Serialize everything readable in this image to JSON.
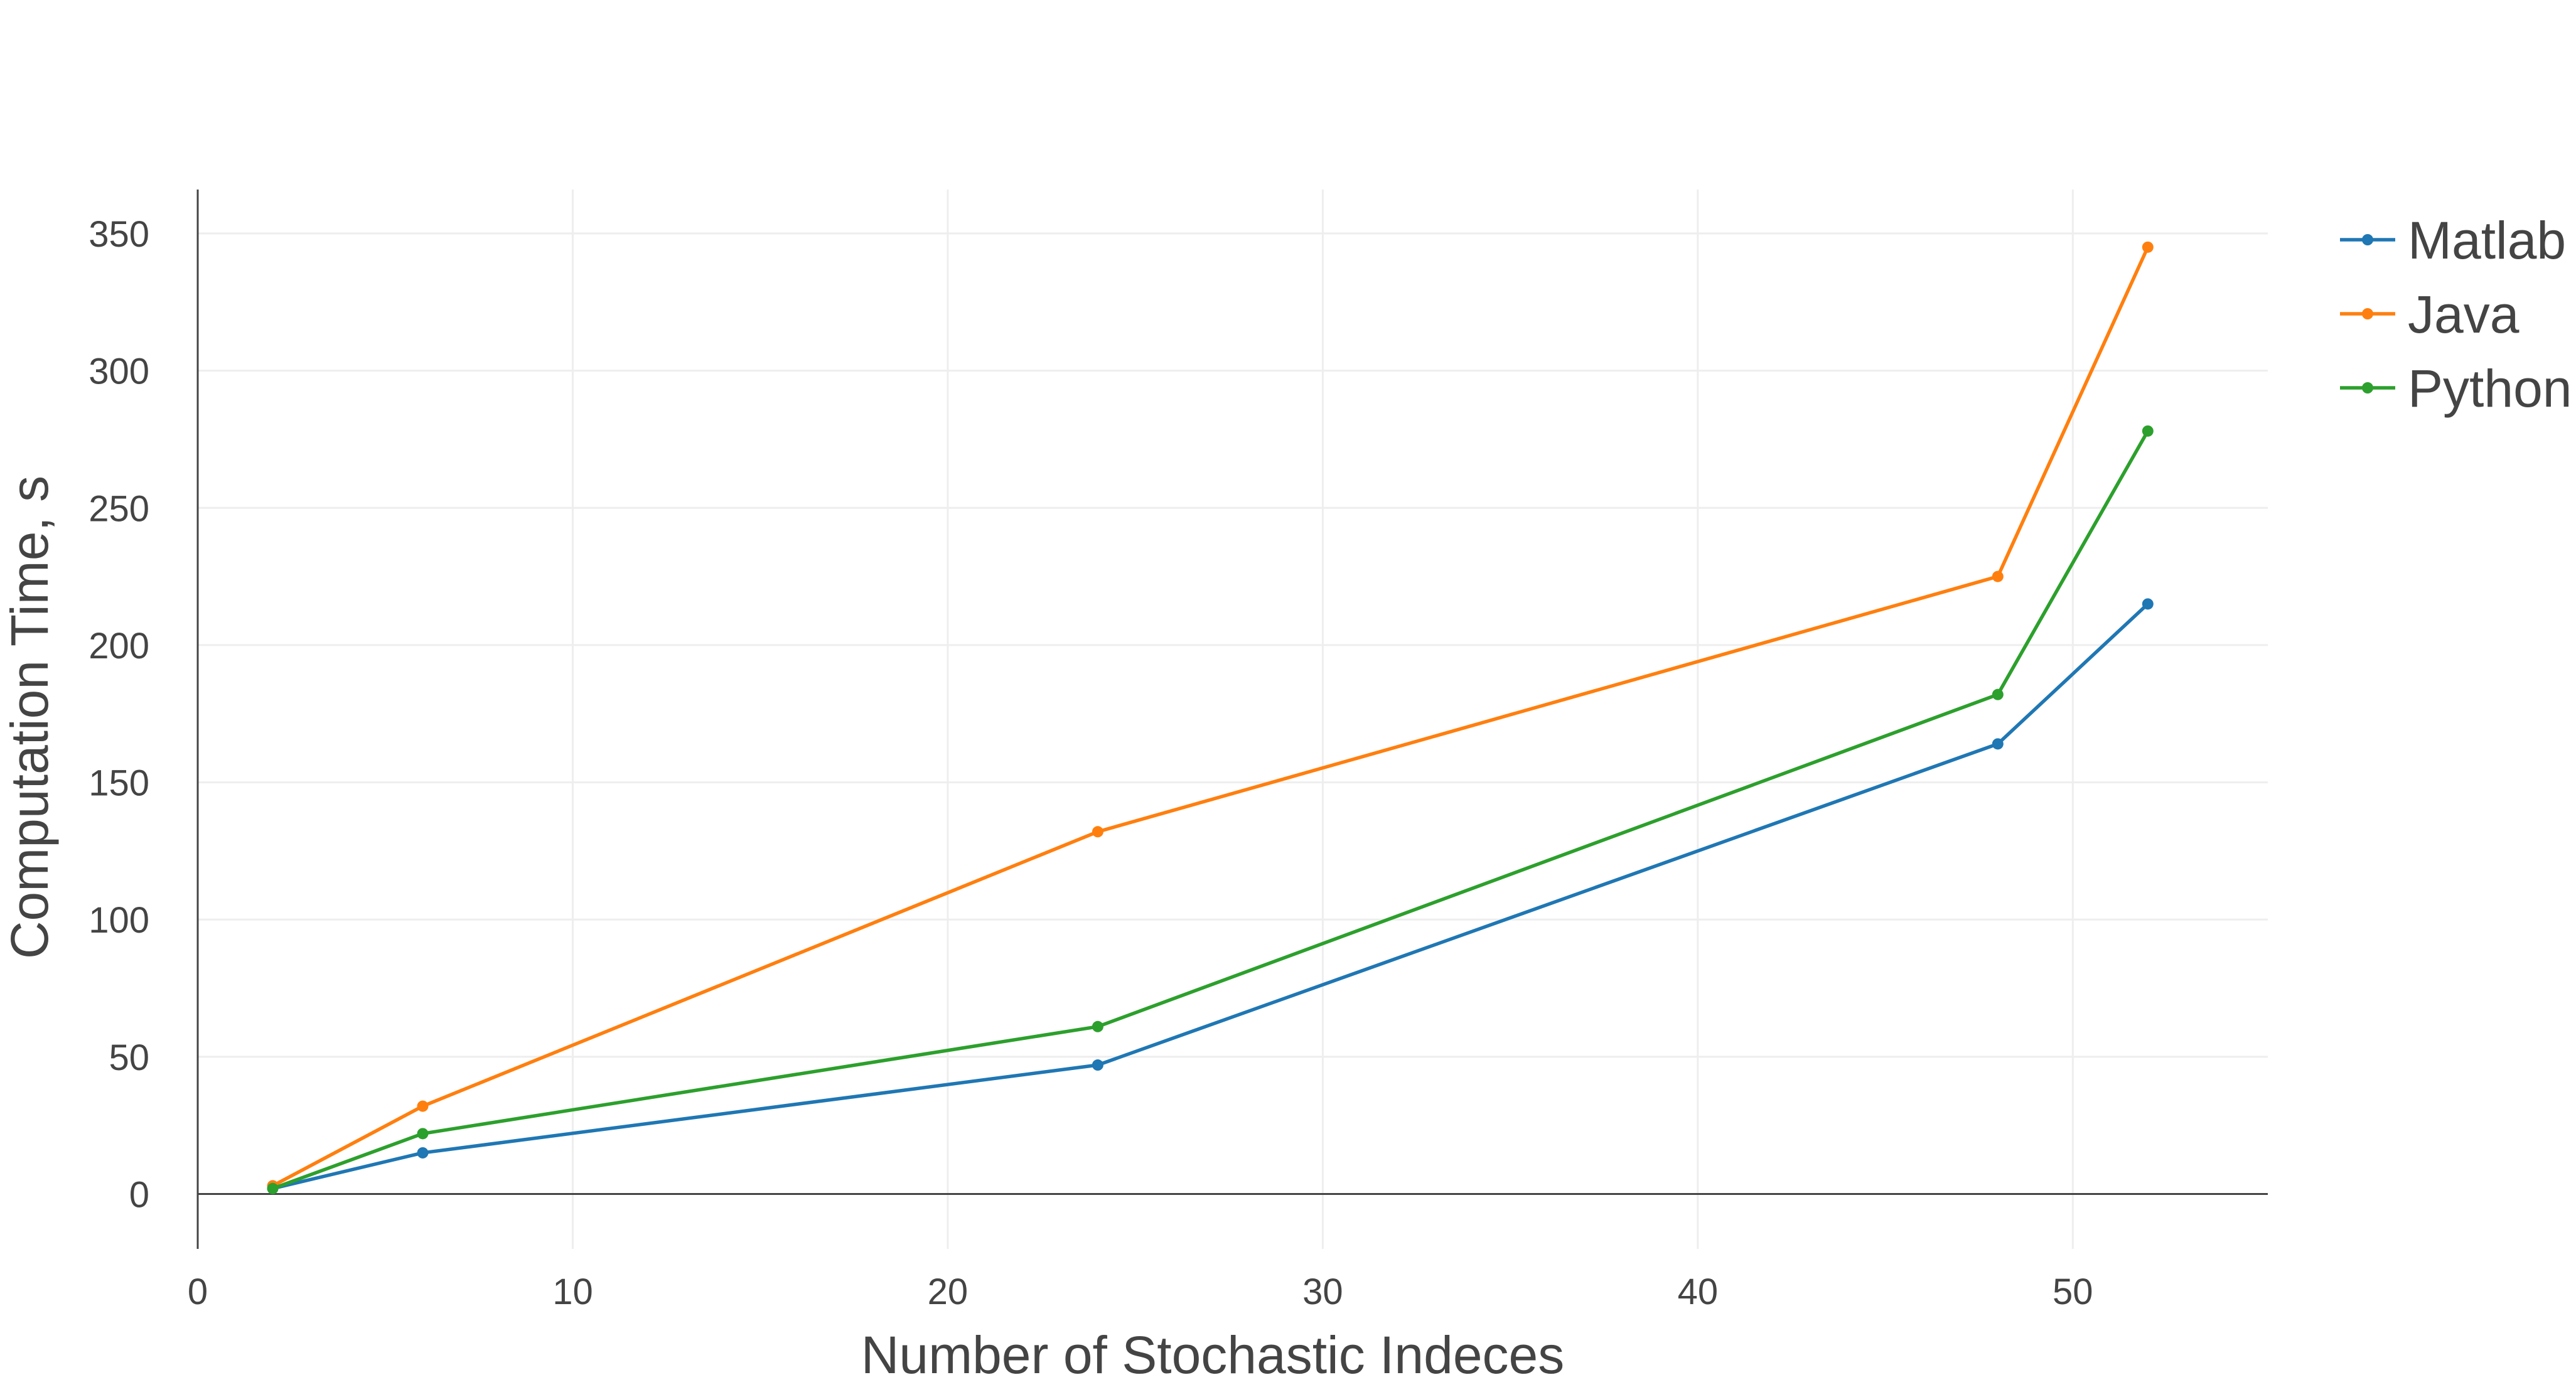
{
  "chart_data": {
    "type": "line",
    "title": "",
    "xlabel": "Number of Stochastic Indeces",
    "ylabel": "Computation Time, s",
    "xlim": [
      0,
      55.2
    ],
    "ylim": [
      -20,
      366
    ],
    "xticks": [
      0,
      10,
      20,
      30,
      40,
      50
    ],
    "yticks": [
      0,
      50,
      100,
      150,
      200,
      250,
      300,
      350
    ],
    "grid": true,
    "legend_position": "top-right",
    "series": [
      {
        "name": "Matlab",
        "color": "#1f77b4",
        "x": [
          2,
          6,
          24,
          48,
          52
        ],
        "y": [
          2,
          15,
          47,
          164,
          215
        ]
      },
      {
        "name": "Java",
        "color": "#ff7f0e",
        "x": [
          2,
          6,
          24,
          48,
          52
        ],
        "y": [
          3,
          32,
          132,
          225,
          345
        ]
      },
      {
        "name": "Python",
        "color": "#2ca02c",
        "x": [
          2,
          6,
          24,
          48,
          52
        ],
        "y": [
          2,
          22,
          61,
          182,
          278
        ]
      }
    ]
  }
}
